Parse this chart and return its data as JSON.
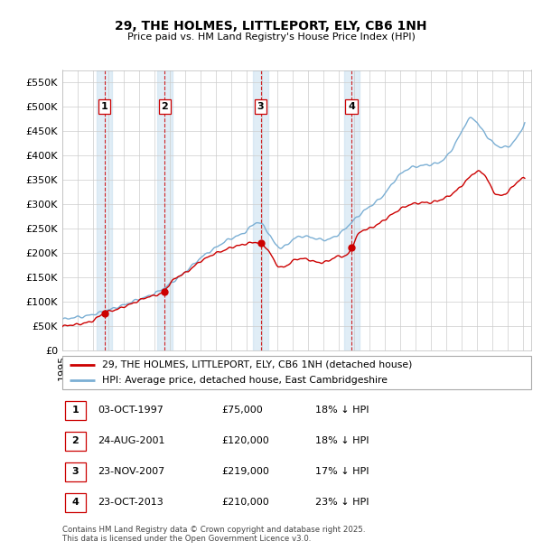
{
  "title": "29, THE HOLMES, LITTLEPORT, ELY, CB6 1NH",
  "subtitle": "Price paid vs. HM Land Registry's House Price Index (HPI)",
  "ylim": [
    0,
    575000
  ],
  "xlim_start": 1995.0,
  "xlim_end": 2025.5,
  "background_color": "#ffffff",
  "grid_color": "#cccccc",
  "hpi_line_color": "#7bafd4",
  "hpi_fill_color": "#c8dff0",
  "price_line_color": "#cc0000",
  "sale_marker_color": "#cc0000",
  "transaction_dates": [
    1997.75,
    2001.65,
    2007.9,
    2013.81
  ],
  "transaction_prices": [
    75000,
    120000,
    219000,
    210000
  ],
  "transaction_labels": [
    "1",
    "2",
    "3",
    "4"
  ],
  "transaction_info": [
    {
      "label": "1",
      "date": "03-OCT-1997",
      "price": "£75,000",
      "note": "18% ↓ HPI"
    },
    {
      "label": "2",
      "date": "24-AUG-2001",
      "price": "£120,000",
      "note": "18% ↓ HPI"
    },
    {
      "label": "3",
      "date": "23-NOV-2007",
      "price": "£219,000",
      "note": "17% ↓ HPI"
    },
    {
      "label": "4",
      "date": "23-OCT-2013",
      "price": "£210,000",
      "note": "23% ↓ HPI"
    }
  ],
  "legend_line1": "29, THE HOLMES, LITTLEPORT, ELY, CB6 1NH (detached house)",
  "legend_line2": "HPI: Average price, detached house, East Cambridgeshire",
  "footer": "Contains HM Land Registry data © Crown copyright and database right 2025.\nThis data is licensed under the Open Government Licence v3.0."
}
